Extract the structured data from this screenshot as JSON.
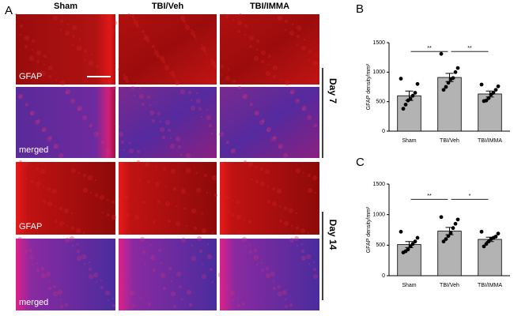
{
  "panel_label": "A",
  "columns": [
    "Sham",
    "TBI/Veh",
    "TBI/IMMA"
  ],
  "row_labels": [
    "GFAP",
    "merged",
    "GFAP",
    "merged"
  ],
  "days": [
    "Day 7",
    "Day 14"
  ],
  "chart_data": [
    {
      "type": "bar",
      "panel": "B",
      "ylabel": "GFAP density/mm²",
      "categories": [
        "Sham",
        "TBI/Veh",
        "TBI/IMMA"
      ],
      "values": [
        600,
        910,
        630
      ],
      "errors": [
        80,
        70,
        50
      ],
      "color": "#b3b3b3",
      "points": [
        [
          890,
          800,
          650,
          600,
          550,
          520,
          450,
          380
        ],
        [
          1310,
          1070,
          1000,
          900,
          880,
          820,
          750,
          700
        ],
        [
          790,
          760,
          700,
          650,
          620,
          560,
          520,
          510
        ]
      ],
      "ylim": [
        0,
        1500
      ],
      "yticks": [
        0,
        500,
        1000,
        1500
      ],
      "significance": [
        {
          "label": "**",
          "between": [
            "Sham",
            "TBI/Veh"
          ],
          "y": 1350
        },
        {
          "label": "**",
          "between": [
            "TBI/Veh",
            "TBI/IMMA"
          ],
          "y": 1350
        }
      ]
    },
    {
      "type": "bar",
      "panel": "C",
      "ylabel": "GFAP density/mm²",
      "categories": [
        "Sham",
        "TBI/Veh",
        "TBI/IMMA"
      ],
      "values": [
        510,
        730,
        595
      ],
      "errors": [
        50,
        60,
        35
      ],
      "color": "#b3b3b3",
      "points": [
        [
          720,
          620,
          560,
          520,
          480,
          430,
          400,
          380
        ],
        [
          960,
          920,
          850,
          780,
          700,
          650,
          600,
          560
        ],
        [
          720,
          690,
          640,
          620,
          600,
          560,
          520,
          480
        ]
      ],
      "ylim": [
        0,
        1500
      ],
      "yticks": [
        0,
        500,
        1000,
        1500
      ],
      "significance": [
        {
          "label": "**",
          "between": [
            "Sham",
            "TBI/Veh"
          ],
          "y": 1250
        },
        {
          "label": "*",
          "between": [
            "TBI/Veh",
            "TBI/IMMA"
          ],
          "y": 1250
        }
      ]
    }
  ]
}
